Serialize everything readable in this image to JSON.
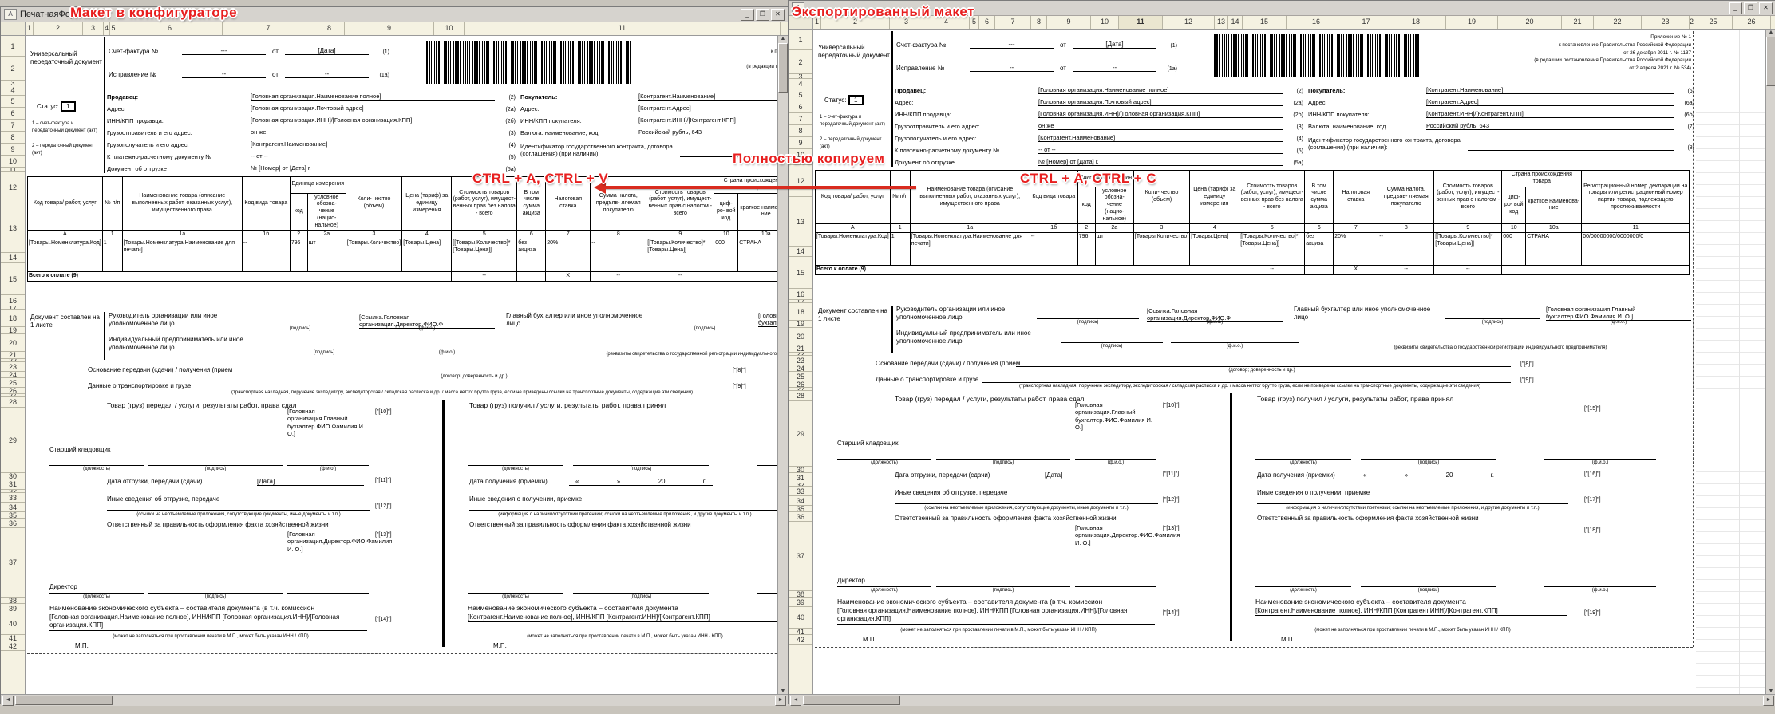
{
  "windows": {
    "left": {
      "title": "ПечатнаяФорма",
      "overlay": "Макет в конфигураторе",
      "icon": "А",
      "controls": [
        "_",
        "❐",
        "✕"
      ],
      "columns": [
        "1",
        "2",
        "3",
        "4",
        "5",
        "6",
        "7",
        "8",
        "9",
        "10",
        "11"
      ]
    },
    "right": {
      "title": "",
      "overlay": "Экспортированный макет",
      "icon": "А",
      "controls": [
        "_",
        "❐",
        "✕"
      ],
      "columns": [
        "1",
        "2",
        "3",
        "4",
        "5",
        "6",
        "7",
        "8",
        "9",
        "10",
        "11",
        "12",
        "13",
        "14",
        "15",
        "16",
        "17",
        "18",
        "19",
        "20",
        "21",
        "22",
        "23",
        "24",
        "25",
        "26"
      ]
    }
  },
  "row_numbers": [
    "1",
    "2",
    "3",
    "4",
    "5",
    "6",
    "7",
    "8",
    "9",
    "10",
    "11",
    "12",
    "13",
    "14",
    "15",
    "16",
    "17",
    "18",
    "19",
    "20",
    "21",
    "22",
    "23",
    "24",
    "25",
    "26",
    "27",
    "28",
    "29",
    "30",
    "31",
    "32",
    "33",
    "34",
    "35",
    "36",
    "37",
    "38",
    "39",
    "40",
    "41",
    "42"
  ],
  "annotations": {
    "paste": "CTRL + A, CTRL + V",
    "copy": "CTRL + A, CTRL + C",
    "copy_full": "Полностью копируем",
    "accent_color": "#e81f1f"
  },
  "form": {
    "doc_type": "Универсальный передаточный документ",
    "status_label": "Статус:",
    "status_value": "1",
    "status_note1": "1 – счет-фактура и передаточный документ (акт)",
    "status_note2": "2 – передаточный документ (акт)",
    "invoice": {
      "label": "Счет-фактура №",
      "num": "---",
      "from1": "от",
      "date": "[Дата]",
      "mark": "(1)",
      "corr_label": "Исправление №",
      "corr_num": "--",
      "from2": "от",
      "corr_date": "--",
      "corr_mark": "(1а)"
    },
    "legal": [
      "Приложение № 1",
      "к постановлению Правительства Российской Федерации",
      "от 26 декабря 2011 г. № 1137",
      "(в редакции постановления Правительства Российской Федерации",
      "от 2 апреля 2021 г. № 534)"
    ],
    "seller": [
      {
        "label": "Продавец:",
        "value": "[Головная организация.Наименование полное]",
        "mark": "(2)"
      },
      {
        "label": "Адрес:",
        "value": "[Головная организация.Почтовый адрес]",
        "mark": "(2а)"
      },
      {
        "label": "ИНН/КПП продавца:",
        "value": "[Головная организация.ИНН]/[Головная организация.КПП]",
        "mark": "(2б)"
      },
      {
        "label": "Грузоотправитель и его адрес:",
        "value": "он же",
        "mark": "(3)"
      },
      {
        "label": "Грузополучатель и его адрес:",
        "value": "[Контрагент.Наименование]",
        "mark": "(4)"
      },
      {
        "label": "К платежно-расчетному документу №",
        "value": "-- от --",
        "mark": "(5)"
      },
      {
        "label": "Документ об отгрузке",
        "value": "№ [Номер] от [Дата] г.",
        "mark": "(5а)"
      }
    ],
    "buyer": [
      {
        "label": "Покупатель:",
        "value": "[Контрагент.Наименование]",
        "mark": "(6)"
      },
      {
        "label": "Адрес:",
        "value": "[Контрагент.Адрес]",
        "mark": "(6а)"
      },
      {
        "label": "ИНН/КПП покупателя:",
        "value": "[Контрагент.ИНН]/[Контрагент.КПП]",
        "mark": "(6б)"
      },
      {
        "label": "Валюта: наименование, код",
        "value": "Российский рубль, 643",
        "mark": "(7)"
      },
      {
        "label": "Идентификатор государственного контракта, договора (соглашения) (при наличии):",
        "value": "",
        "mark": "(8)"
      }
    ],
    "table": {
      "top": [
        {
          "t": "Код товара/ работ, услуг"
        },
        {
          "t": "№ п/п"
        },
        {
          "t": "Наименование товара (описание выполненных работ, оказанных услуг), имущественного права"
        },
        {
          "t": "Код вида товара"
        },
        {
          "t": "Единица измерения",
          "cs": 2
        },
        {
          "t": "Коли- чество (объем)"
        },
        {
          "t": "Цена (тариф) за единицу измерения"
        },
        {
          "t": "Стоимость товаров (работ, услуг), имущест- венных прав без налога - всего"
        },
        {
          "t": "В том числе сумма акциза"
        },
        {
          "t": "Налоговая ставка"
        },
        {
          "t": "Сумма налога, предъяв- ляемая покупателю"
        },
        {
          "t": "Стоимость товаров (работ, услуг), имущест- венных прав с налогом - всего"
        },
        {
          "t": "Страна происхождения товара",
          "cs": 2
        },
        {
          "t": "Регистрационный номер декларации на товары или регистрационный номер партии товара, подлежащего прослеживаемости"
        }
      ],
      "sub": [
        "код",
        "условное обозна- чение (нацио- нальное)",
        "циф- ро- вой код",
        "краткое наименова- ние"
      ],
      "codes": [
        "А",
        "1",
        "1а",
        "1б",
        "2",
        "2а",
        "3",
        "4",
        "5",
        "6",
        "7",
        "8",
        "9",
        "10",
        "10а",
        "11"
      ],
      "row": [
        "[Товары.Номенклатура.Код]",
        "1",
        "[Товары.Номенклатура.Наименование для печати]",
        "--",
        "796",
        "шт",
        "[Товары.Количество]",
        "[Товары.Цена]",
        "[[Товары.Количество]*[Товары.Цена]]",
        "без акциза",
        "20%",
        "--",
        "[[Товары.Количество]*[Товары.Цена]]",
        "000",
        "СТРАНА",
        "00/00000000/0000000/0"
      ],
      "total_label": "Всего к оплате (9)",
      "total_5": "--",
      "total_7": "X",
      "total_8": "--",
      "total_9": "--"
    },
    "sign": {
      "made_on": "Документ составлен на 1 листе",
      "head_label": "Руководитель организации или иное уполномоченное лицо",
      "sig": "(подпись)",
      "fio": "(ф.и.о.)",
      "head_fio": "[Ссылка.Головная организация.Директор.ФИО.Ф",
      "chief_label": "Главный бухгалтер или иное уполномоченное лицо",
      "chief_fio": "[Головная организация.Главный бухгалтер.ФИО.Фамилия И. О.]",
      "ip_label": "Индивидуальный предприниматель или иное уполномоченное лицо",
      "ip_note": "(реквизиты свидетельства о государственной  регистрации индивидуального предпринимателя)"
    },
    "basis": {
      "label": "Основание передачи (сдачи) / получения (прием",
      "note": "(договор; доверенность и др.)",
      "mark": "[\"[8]\"]"
    },
    "transport": {
      "label": "Данные о транспортировке и грузе",
      "note": "(транспортная накладная, поручение экспедитору, экспедиторская / складская расписка и др. / масса нетто/ брутто груза, если не приведены ссылки на транспортные документы, содержащие эти сведения)",
      "mark": "[\"[9]\"]"
    },
    "left_half": {
      "title": "Товар (груз) передал / услуги, результаты работ, права сдал",
      "position": "Старший кладовщик",
      "pos_cap": "(должность)",
      "sig_cap": "(подпись)",
      "fio_cap": "(ф.и.о.)",
      "fio_value": "[Головная организация.Главный бухгалтер.ФИО.Фамилия И. О.]",
      "m10": "[\"[10]\"]",
      "date_label": "Дата отгрузки, передачи (сдачи)",
      "date_value": "[Дата]",
      "m11": "[\"[11]\"]",
      "other_label": "Иные сведения об отгрузке, передаче",
      "m12": "[\"[12]\"]",
      "other_note": "(ссылки на неотъемлемые приложения, сопутствующие документы, иные документы и т.п.)",
      "resp_label": "Ответственный за правильность оформления факта хозяйственной жизни",
      "resp_position": "Директор",
      "resp_fio": "[Головная организация.Директор.ФИО.Фамилия И. О.]",
      "m13": "[\"[13]\"]",
      "subject_label": "Наименование экономического субъекта – составителя документа (в т.ч. комиссион",
      "subject_value": "[Головная организация.Наименование полное], ИНН/КПП [Головная организация.ИНН]/[Головная организация.КПП]",
      "m14": "[\"[14]\"]",
      "subject_note": "(может не заполняться при проставлении печати в М.П., может быть указан ИНН / КПП)",
      "mp": "М.П."
    },
    "right_half": {
      "title": "Товар (груз) получил / услуги, результаты работ, права принял",
      "m15": "[\"[15]\"]",
      "pos_cap": "(должность)",
      "sig_cap": "(подпись)",
      "fio_cap": "(ф.и.о.)",
      "date_label": "Дата получения (приемки)",
      "date_q1": "«",
      "date_q2": "»",
      "date_year": "20",
      "date_g": "г.",
      "m16": "[\"[16]\"]",
      "other_label": "Иные сведения о получении, приемке",
      "m17": "[\"[17]\"]",
      "other_note": "(информация о наличии/отсутствии претензии; ссылки на неотъемлемые приложения, и другие  документы и т.п.)",
      "resp_label": "Ответственный за правильность оформления факта хозяйственной жизни",
      "m18": "[\"[18]\"]",
      "subject_label": "Наименование экономического субъекта – составителя документа",
      "subject_value": "[Контрагент.Наименование полное], ИНН/КПП [Контрагент.ИНН]/[Контрагент.КПП]",
      "m19": "[\"[19]\"]",
      "subject_note": "(может не заполняться при проставлении печати в М.П., может быть указан ИНН / КПП)",
      "mp": "М.П."
    }
  }
}
